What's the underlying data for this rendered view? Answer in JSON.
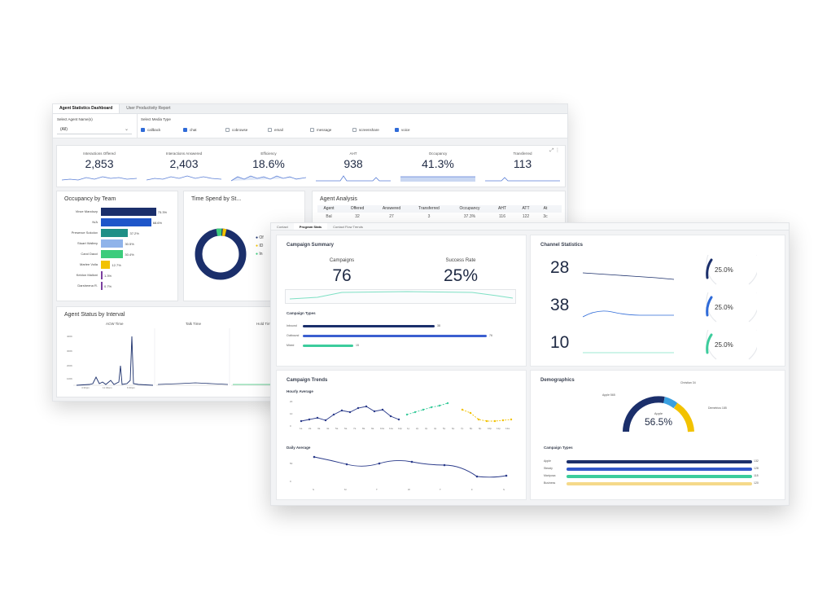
{
  "back": {
    "tabs": [
      "Agent Statistics Dashboard",
      "User Productivity Report"
    ],
    "filter": {
      "agent_label": "Select Agent Name(s)",
      "agent_value": "(All)",
      "media_label": "Select Media Type",
      "media": [
        {
          "label": "callback",
          "checked": true
        },
        {
          "label": "chat",
          "checked": true
        },
        {
          "label": "cobrowse",
          "checked": false
        },
        {
          "label": "email",
          "checked": false
        },
        {
          "label": "message",
          "checked": false
        },
        {
          "label": "screenshare",
          "checked": false
        },
        {
          "label": "voice",
          "checked": true
        }
      ]
    },
    "kpis": [
      {
        "label": "Interactions Offered",
        "value": "2,853"
      },
      {
        "label": "Interactions Answered",
        "value": "2,403"
      },
      {
        "label": "Efficiency",
        "value": "18.6%"
      },
      {
        "label": "AHT",
        "value": "938"
      },
      {
        "label": "Occupancy",
        "value": "41.3%"
      },
      {
        "label": "Transferred",
        "value": "113"
      }
    ],
    "occupancy": {
      "title": "Occupancy by Team",
      "rows": [
        {
          "name": "Vince Mandozy",
          "value": 75.3,
          "label": "75.3%",
          "color": "#1b2f6b"
        },
        {
          "name": "N/A",
          "value": 68.6,
          "label": "68.6%",
          "color": "#1f56c9"
        },
        {
          "name": "Presence Sokolov",
          "value": 37.2,
          "label": "37.2%",
          "color": "#1f8f86"
        },
        {
          "name": "Stuart Wallery",
          "value": 30.5,
          "label": "30.5%",
          "color": "#8fb3ea"
        },
        {
          "name": "Carol Dacci",
          "value": 30.4,
          "label": "30.4%",
          "color": "#3ccc7c"
        },
        {
          "name": "Marlee Voila",
          "value": 12.7,
          "label": "12.7%",
          "color": "#f2c200"
        },
        {
          "name": "Keldon Malloni",
          "value": 1.3,
          "label": "1.3%",
          "color": "#7b3fa0"
        },
        {
          "name": "Darsheena R.",
          "value": 0.7,
          "label": "0.7%",
          "color": "#7b3fa0"
        }
      ]
    },
    "time_spend": {
      "title": "Time Spend by St...",
      "legend": [
        "Of",
        "ID",
        "In"
      ]
    },
    "agent_analysis": {
      "title": "Agent Analysis",
      "columns": [
        "Agent",
        "Offered",
        "Answered",
        "Transferred",
        "Occupancy",
        "AHT",
        "ATT",
        "At"
      ],
      "row": [
        "Bal",
        "32",
        "27",
        "3",
        "37.3%",
        "116",
        "122",
        "3c"
      ]
    },
    "interval": {
      "title": "Agent Status by Interval",
      "columns": [
        "ACW Time",
        "Talk Time",
        "Hold Time"
      ],
      "yticks": [
        "400K",
        "300K",
        "200K",
        "100K"
      ],
      "xticks": [
        "4:30pm",
        "11:30am",
        "6:30pm"
      ]
    }
  },
  "front": {
    "tabs": [
      "Contact",
      "Program Stats",
      "Contact Flow Trends"
    ],
    "campaign_summary": {
      "title": "Campaign Summary",
      "campaigns_label": "Campaigns",
      "campaigns_value": "76",
      "success_label": "Success Rate",
      "success_value": "25%",
      "types_title": "Campaign Types",
      "types": [
        {
          "name": "Inbound",
          "label": "38",
          "color": "#1b2f6b"
        },
        {
          "name": "Outbound",
          "label": "76",
          "color": "#3b5fd0"
        },
        {
          "name": "Mixed",
          "label": "15",
          "color": "#3ccc9c"
        }
      ]
    },
    "channel": {
      "title": "Channel Statistics",
      "rows": [
        {
          "value": "28",
          "percent": "25.0%",
          "fraction": 0.25,
          "color": "#1b2f6b"
        },
        {
          "value": "38",
          "percent": "25.0%",
          "fraction": 0.25,
          "color": "#2f6bd8"
        },
        {
          "value": "10",
          "percent": "25.0%",
          "fraction": 0.25,
          "color": "#3ccc9c"
        }
      ]
    },
    "trends": {
      "title": "Campaign Trends",
      "hourly_title": "Hourly Average",
      "hourly_y": [
        "20",
        "10",
        "0"
      ],
      "hourly_x": [
        "1a",
        "2a",
        "3a",
        "4a",
        "5a",
        "6a",
        "7a",
        "8a",
        "9a",
        "10a",
        "11a",
        "12p",
        "1p",
        "2p",
        "3p",
        "4p",
        "5p",
        "6p",
        "7p",
        "8p",
        "9p",
        "10p",
        "11p",
        "12a"
      ],
      "daily_title": "Daily Average",
      "daily_y": [
        "50",
        "0"
      ],
      "daily_x": [
        "S",
        "M",
        "T",
        "W",
        "T",
        "F",
        "S"
      ]
    },
    "demographics": {
      "title": "Demographics",
      "gauge_label": "Apple",
      "gauge_value": "56.5%",
      "callouts": [
        "Apple 565",
        "Christian 34",
        "Demetrios 185"
      ],
      "types_title": "Campaign Types",
      "types": [
        {
          "name": "Apple",
          "label": "132",
          "color": "#1b2f6b"
        },
        {
          "name": "Steady",
          "label": "128",
          "color": "#2f56c9"
        },
        {
          "name": "Mariposa",
          "label": "118",
          "color": "#3ccc9c"
        },
        {
          "name": "Business",
          "label": "120",
          "color": "#f5d98a"
        }
      ]
    }
  }
}
